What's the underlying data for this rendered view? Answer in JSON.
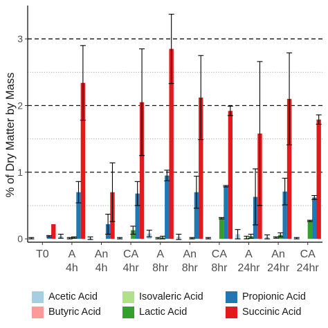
{
  "chart_data": {
    "type": "bar",
    "title": "",
    "xlabel": "",
    "ylabel": "% of Dry Matter by Mass",
    "ylim": [
      -0.05,
      3.5
    ],
    "yticks": [
      0,
      1,
      2,
      3
    ],
    "reference_lines": [
      1,
      2,
      3
    ],
    "grid": "dotted horizontal minor lines at 0.5, 1.5, 2.5; dashed lines at 1, 2, 3",
    "legend_position": "bottom",
    "categories": [
      "T0\n",
      "A\n4h",
      "An\n4h",
      "CA\n4hr",
      "A\n8hr",
      "An\n8hr",
      "CA\n8hr",
      "A\n24hr",
      "An\n24hr",
      "CA\n24hr"
    ],
    "series": [
      {
        "name": "Acetic Acid",
        "color": "#a6cee3",
        "values": [
          0.01,
          0.04,
          0.01,
          0.01,
          0.08,
          0.03,
          0.01,
          0.07,
          0.03,
          0.01
        ],
        "errors": [
          0.01,
          0.03,
          0.02,
          0.01,
          0.05,
          0.04,
          0.01,
          0.07,
          0.03,
          0.01
        ]
      },
      {
        "name": "Butyric Acid",
        "color": "#fb9a99",
        "values": [
          0.0,
          0.0,
          0.0,
          0.0,
          0.0,
          0.0,
          0.0,
          0.0,
          0.0,
          0.0
        ],
        "errors": [
          0.0,
          0.0,
          0.0,
          0.0,
          0.0,
          0.0,
          0.0,
          0.0,
          0.0,
          0.0
        ]
      },
      {
        "name": "Isovaleric Acid",
        "color": "#b2df8a",
        "values": [
          0.0,
          0.01,
          0.0,
          0.0,
          0.01,
          0.0,
          0.0,
          0.02,
          0.02,
          0.0
        ],
        "errors": [
          0.0,
          0.01,
          0.0,
          0.0,
          0.01,
          0.0,
          0.0,
          0.02,
          0.01,
          0.0
        ]
      },
      {
        "name": "Lactic Acid",
        "color": "#33a02c",
        "values": [
          0.0,
          0.02,
          0.0,
          0.13,
          0.02,
          0.01,
          0.31,
          0.04,
          0.06,
          0.27
        ],
        "errors": [
          0.0,
          0.01,
          0.0,
          0.06,
          0.02,
          0.01,
          0.01,
          0.03,
          0.03,
          0.01
        ]
      },
      {
        "name": "Propionic Acid",
        "color": "#1f78b4",
        "values": [
          0.04,
          0.7,
          0.22,
          0.68,
          0.95,
          0.7,
          0.79,
          0.63,
          0.71,
          0.62
        ],
        "errors": [
          0.01,
          0.16,
          0.15,
          0.18,
          0.08,
          0.24,
          0.01,
          0.42,
          0.2,
          0.03
        ]
      },
      {
        "name": "Succinic Acid",
        "color": "#e31a1c",
        "values": [
          0.22,
          2.34,
          0.7,
          2.05,
          2.85,
          2.12,
          1.92,
          1.58,
          2.1,
          1.79
        ],
        "errors": [
          0.0,
          0.56,
          0.44,
          0.8,
          0.52,
          0.63,
          0.07,
          1.08,
          0.69,
          0.07
        ]
      }
    ]
  }
}
